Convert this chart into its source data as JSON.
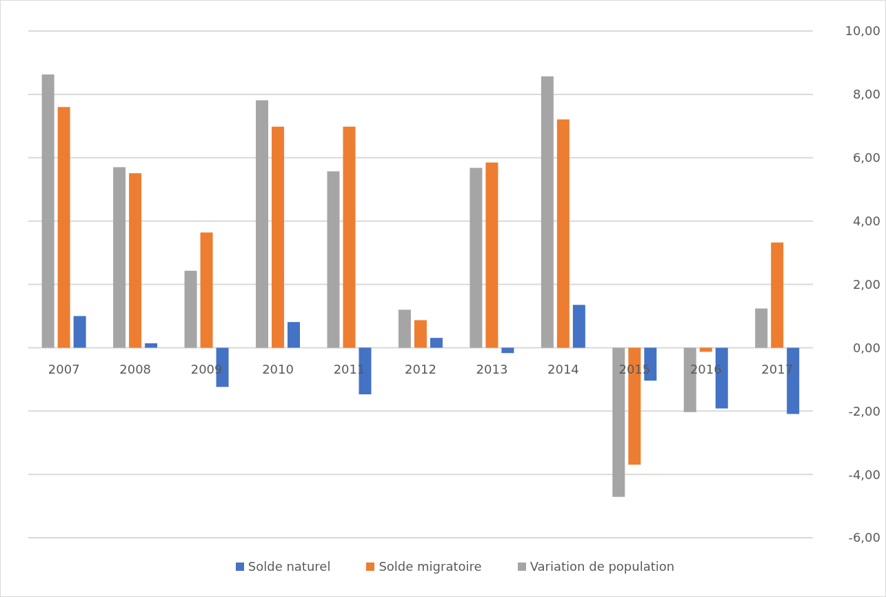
{
  "chart_data": {
    "type": "bar",
    "categories": [
      "2007",
      "2008",
      "2009",
      "2010",
      "2011",
      "2012",
      "2013",
      "2014",
      "2015",
      "2016",
      "2017"
    ],
    "series": [
      {
        "name": "Solde naturel",
        "color": "#4472c4",
        "values": [
          1.0,
          0.14,
          -1.24,
          0.81,
          -1.47,
          0.31,
          -0.17,
          1.35,
          -1.04,
          -1.92,
          -2.09
        ]
      },
      {
        "name": "Solde migratoire",
        "color": "#ed7d31",
        "values": [
          7.6,
          5.51,
          3.64,
          6.98,
          6.98,
          0.87,
          5.85,
          7.21,
          -3.69,
          -0.13,
          3.32
        ]
      },
      {
        "name": "Variation de population",
        "color": "#a5a5a5",
        "values": [
          8.63,
          5.7,
          2.43,
          7.81,
          5.57,
          1.2,
          5.68,
          8.57,
          -4.71,
          -2.03,
          1.24
        ]
      }
    ],
    "ylim": [
      -6,
      10
    ],
    "yticks": [
      {
        "value": -6,
        "label": "-6,00"
      },
      {
        "value": -4,
        "label": "-4,00"
      },
      {
        "value": -2,
        "label": "-2,00"
      },
      {
        "value": 0,
        "label": "0,00"
      },
      {
        "value": 2,
        "label": "2,00"
      },
      {
        "value": 4,
        "label": "4,00"
      },
      {
        "value": 6,
        "label": "6,00"
      },
      {
        "value": 8,
        "label": "8,00"
      },
      {
        "value": 10,
        "label": "10,00"
      }
    ],
    "grid": "y",
    "legend": "bottom"
  }
}
